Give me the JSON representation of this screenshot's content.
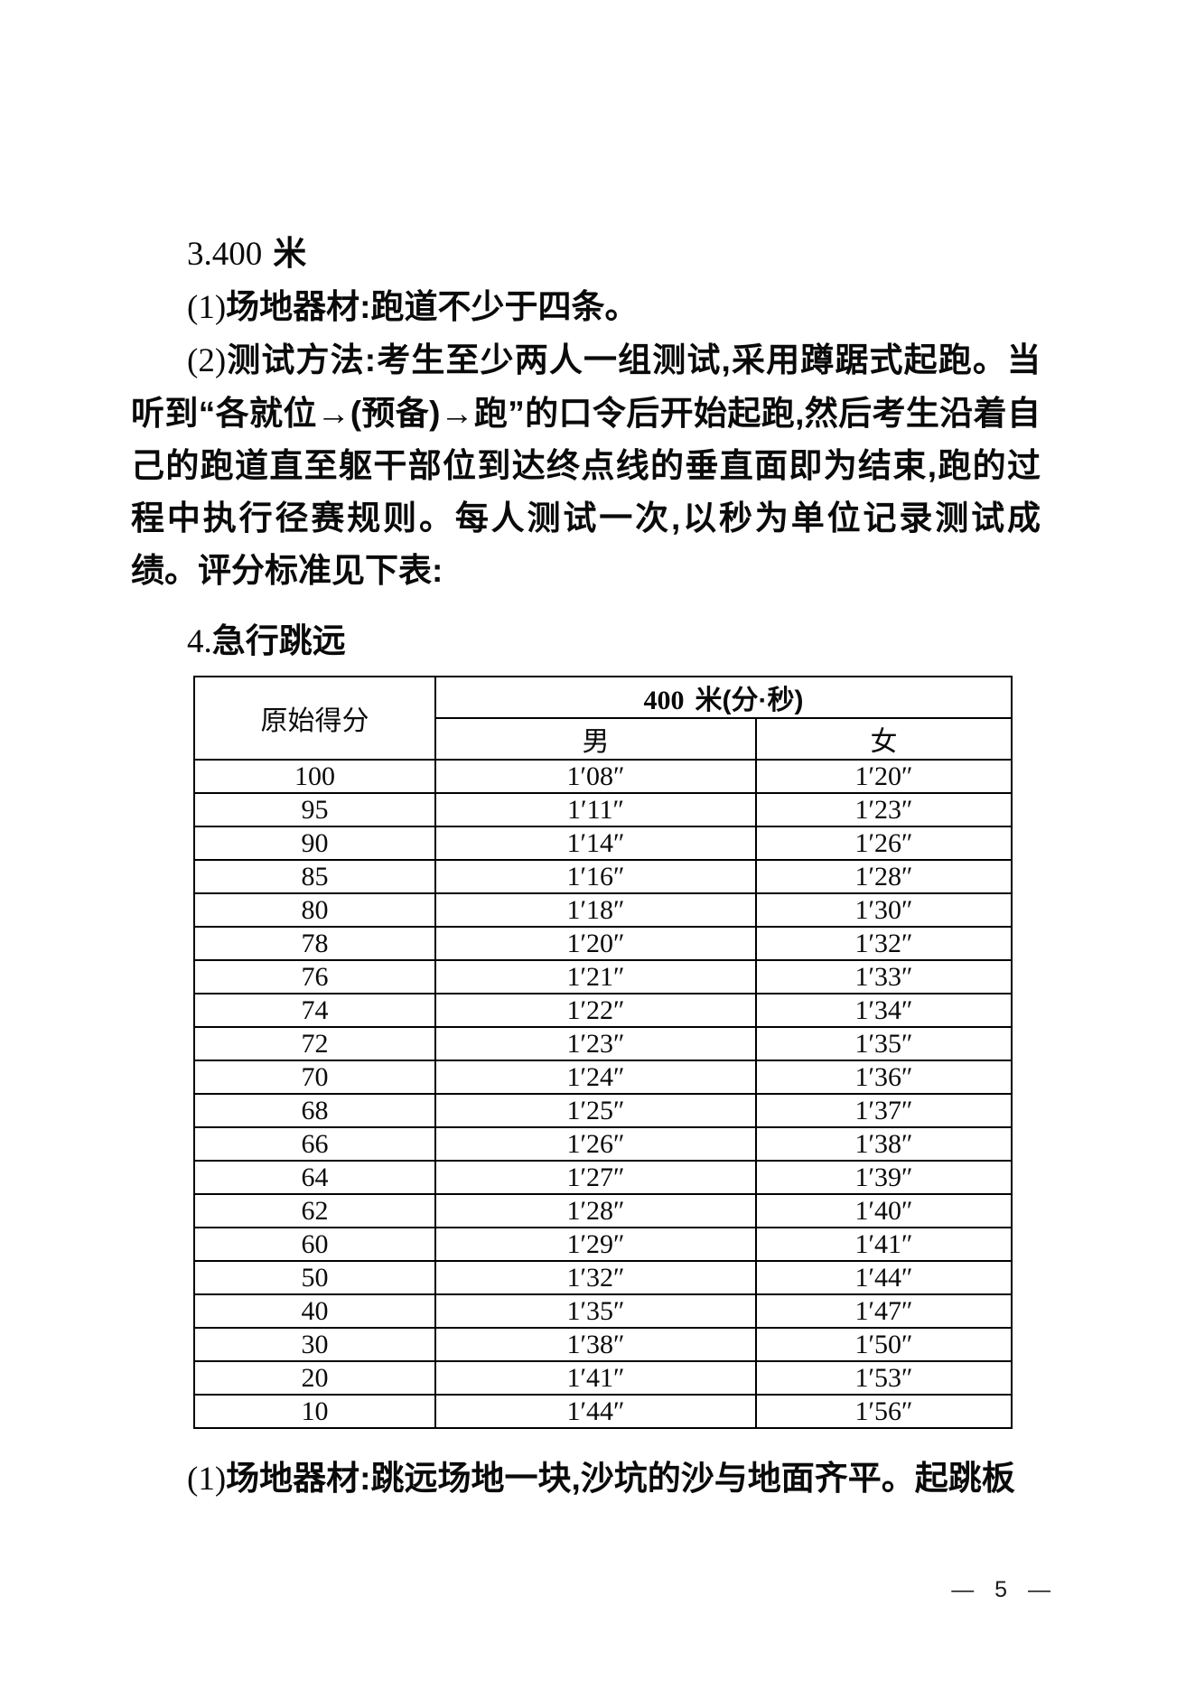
{
  "page": {
    "footer_page_number": "— 5 —"
  },
  "section_400m": {
    "heading": {
      "num": "3.400",
      "unit": "米"
    },
    "item1": {
      "num": "(1)",
      "text": "场地器材:跑道不少于四条。"
    },
    "item2": {
      "num": "(2)",
      "text": "测试方法:考生至少两人一组测试,采用蹲踞式起跑。当听到“各就位→(预备)→跑”的口令后开始起跑,然后考生沿着自己的跑道直至躯干部位到达终点线的垂直面即为结束,跑的过程中执行径赛规则。每人测试一次,以秒为单位记录测试成绩。评分标准见下表:"
    }
  },
  "section_long_jump": {
    "heading": {
      "num": "4.",
      "title": "急行跳远"
    },
    "item1": {
      "num": "(1)",
      "text": "场地器材:跳远场地一块,沙坑的沙与地面齐平。起跳板"
    }
  },
  "score_table": {
    "col1_header": "原始得分",
    "group_header_num": "400",
    "group_header_text": "米(分·秒)",
    "male_header": "男",
    "female_header": "女",
    "rows": [
      {
        "score": "100",
        "male": "1′08″",
        "female": "1′20″"
      },
      {
        "score": "95",
        "male": "1′11″",
        "female": "1′23″"
      },
      {
        "score": "90",
        "male": "1′14″",
        "female": "1′26″"
      },
      {
        "score": "85",
        "male": "1′16″",
        "female": "1′28″"
      },
      {
        "score": "80",
        "male": "1′18″",
        "female": "1′30″"
      },
      {
        "score": "78",
        "male": "1′20″",
        "female": "1′32″"
      },
      {
        "score": "76",
        "male": "1′21″",
        "female": "1′33″"
      },
      {
        "score": "74",
        "male": "1′22″",
        "female": "1′34″"
      },
      {
        "score": "72",
        "male": "1′23″",
        "female": "1′35″"
      },
      {
        "score": "70",
        "male": "1′24″",
        "female": "1′36″"
      },
      {
        "score": "68",
        "male": "1′25″",
        "female": "1′37″"
      },
      {
        "score": "66",
        "male": "1′26″",
        "female": "1′38″"
      },
      {
        "score": "64",
        "male": "1′27″",
        "female": "1′39″"
      },
      {
        "score": "62",
        "male": "1′28″",
        "female": "1′40″"
      },
      {
        "score": "60",
        "male": "1′29″",
        "female": "1′41″"
      },
      {
        "score": "50",
        "male": "1′32″",
        "female": "1′44″"
      },
      {
        "score": "40",
        "male": "1′35″",
        "female": "1′47″"
      },
      {
        "score": "30",
        "male": "1′38″",
        "female": "1′50″"
      },
      {
        "score": "20",
        "male": "1′41″",
        "female": "1′53″"
      },
      {
        "score": "10",
        "male": "1′44″",
        "female": "1′56″"
      }
    ]
  }
}
